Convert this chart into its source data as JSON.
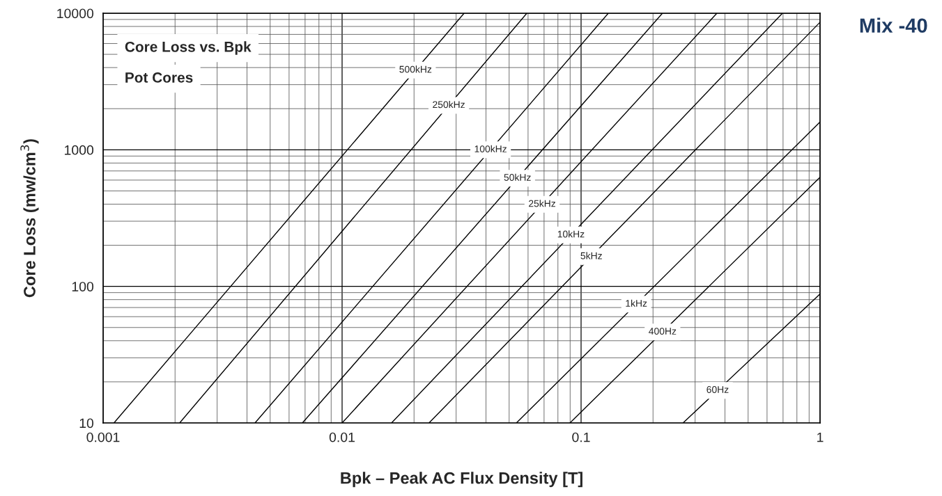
{
  "chart_data": {
    "type": "line",
    "title": "Core Loss vs. Bpk",
    "subtitle": "Pot Cores",
    "xlabel": "Bpk – Peak AC Flux Density [T]",
    "ylabel": "Core Loss (mw/cm$^{3}$)",
    "log": "xy",
    "xlim": [
      0.001,
      1
    ],
    "ylim": [
      10,
      10000
    ],
    "xticks": [
      0.001,
      0.01,
      0.1,
      1
    ],
    "yticks": [
      10,
      100,
      1000,
      10000
    ],
    "grid": true,
    "series": [
      {
        "name": "500kHz",
        "color": "#000000",
        "x": [
          0.00111,
          0.0324
        ],
        "values": [
          10,
          10000
        ]
      },
      {
        "name": "250kHz",
        "color": "#000000",
        "x": [
          0.00209,
          0.0593
        ],
        "values": [
          10,
          10000
        ]
      },
      {
        "name": "100kHz",
        "color": "#000000",
        "x": [
          0.00432,
          0.13
        ],
        "values": [
          10,
          10000
        ]
      },
      {
        "name": "50kHz",
        "color": "#000000",
        "x": [
          0.00682,
          0.219
        ],
        "values": [
          10,
          10000
        ]
      },
      {
        "name": "25kHz",
        "color": "#000000",
        "x": [
          0.01,
          0.37
        ],
        "values": [
          10,
          10000
        ]
      },
      {
        "name": "10kHz",
        "color": "#000000",
        "x": [
          0.0161,
          0.696
        ],
        "values": [
          10,
          10000
        ]
      },
      {
        "name": "5kHz",
        "color": "#000000",
        "x": [
          0.0231,
          1
        ],
        "values": [
          10,
          8600
        ]
      },
      {
        "name": "1kHz",
        "color": "#000000",
        "x": [
          0.0536,
          1
        ],
        "values": [
          10,
          1600
        ]
      },
      {
        "name": "400Hz",
        "color": "#000000",
        "x": [
          0.0898,
          1
        ],
        "values": [
          10,
          630
        ]
      },
      {
        "name": "60Hz",
        "color": "#000000",
        "x": [
          0.267,
          1
        ],
        "values": [
          10,
          88
        ]
      }
    ],
    "annotations": [
      "Mix -40"
    ]
  }
}
